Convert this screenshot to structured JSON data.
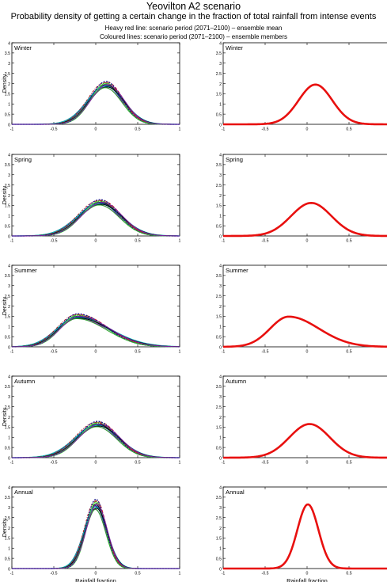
{
  "header": {
    "title": "Yeovilton A2 scenario",
    "subtitle": "Probability density of getting a certain change in the fraction of total rainfall from intense events",
    "legend_line1": "Heavy red line: scenario period (2071–2100) – ensemble mean",
    "legend_line2": "Coloured lines: scenario period (2071–2100) – ensemble members"
  },
  "axes_text": {
    "ylabel": "Density",
    "xlabel": "Rainfall fraction",
    "xticks": [
      "-1",
      "-0.5",
      "0",
      "0.5",
      "1"
    ],
    "yticks": [
      "0",
      "0.5",
      "1",
      "1.5",
      "2",
      "2.5",
      "3",
      "3.5",
      "4"
    ]
  },
  "colors": {
    "mean": "#e8100f",
    "members": [
      "#000000",
      "#1a1a8c",
      "#2ea52e",
      "#7a1fa0",
      "#d01c1c",
      "#00b5b5",
      "#3ce03c",
      "#b02222"
    ]
  },
  "chart_data": [
    {
      "type": "line",
      "title": "Winter",
      "column": "ensemble members",
      "xlim": [
        -1,
        1
      ],
      "ylim": [
        0,
        4
      ],
      "series": [
        {
          "kind": "members",
          "peak_x": 0.12,
          "peak_y": 1.95,
          "sigma": 0.2
        }
      ]
    },
    {
      "type": "line",
      "title": "Winter",
      "column": "ensemble mean",
      "xlim": [
        -1,
        1
      ],
      "ylim": [
        0,
        4
      ],
      "series": [
        {
          "kind": "mean",
          "peak_x": 0.1,
          "peak_y": 1.95,
          "sigma": 0.2
        }
      ]
    },
    {
      "type": "line",
      "title": "Spring",
      "column": "ensemble members",
      "xlim": [
        -1,
        1
      ],
      "ylim": [
        0,
        4
      ],
      "series": [
        {
          "kind": "members",
          "peak_x": 0.05,
          "peak_y": 1.65,
          "sigma": 0.24
        }
      ]
    },
    {
      "type": "line",
      "title": "Spring",
      "column": "ensemble mean",
      "xlim": [
        -1,
        1
      ],
      "ylim": [
        0,
        4
      ],
      "series": [
        {
          "kind": "mean",
          "peak_x": 0.05,
          "peak_y": 1.62,
          "sigma": 0.24
        }
      ]
    },
    {
      "type": "line",
      "title": "Summer",
      "column": "ensemble members",
      "xlim": [
        -1,
        1
      ],
      "ylim": [
        0,
        4
      ],
      "series": [
        {
          "kind": "members",
          "peak_x": -0.22,
          "peak_y": 1.5,
          "sigma_left": 0.22,
          "sigma_right": 0.36
        }
      ]
    },
    {
      "type": "line",
      "title": "Summer",
      "column": "ensemble mean",
      "xlim": [
        -1,
        1
      ],
      "ylim": [
        0,
        4
      ],
      "series": [
        {
          "kind": "mean",
          "peak_x": -0.22,
          "peak_y": 1.48,
          "sigma_left": 0.22,
          "sigma_right": 0.36
        }
      ]
    },
    {
      "type": "line",
      "title": "Autumn",
      "column": "ensemble members",
      "xlim": [
        -1,
        1
      ],
      "ylim": [
        0,
        4
      ],
      "series": [
        {
          "kind": "members",
          "peak_x": 0.02,
          "peak_y": 1.65,
          "sigma": 0.24
        }
      ]
    },
    {
      "type": "line",
      "title": "Autumn",
      "column": "ensemble mean",
      "xlim": [
        -1,
        1
      ],
      "ylim": [
        0,
        4
      ],
      "series": [
        {
          "kind": "mean",
          "peak_x": 0.03,
          "peak_y": 1.65,
          "sigma": 0.24
        }
      ]
    },
    {
      "type": "line",
      "title": "Annual",
      "column": "ensemble members",
      "xlim": [
        -1,
        1
      ],
      "ylim": [
        0,
        4
      ],
      "series": [
        {
          "kind": "members",
          "peak_x": 0.0,
          "peak_y": 3.15,
          "sigma": 0.125
        }
      ]
    },
    {
      "type": "line",
      "title": "Annual",
      "column": "ensemble mean",
      "xlim": [
        -1,
        1
      ],
      "ylim": [
        0,
        4
      ],
      "series": [
        {
          "kind": "mean",
          "peak_x": 0.01,
          "peak_y": 3.15,
          "sigma": 0.125
        }
      ]
    }
  ]
}
